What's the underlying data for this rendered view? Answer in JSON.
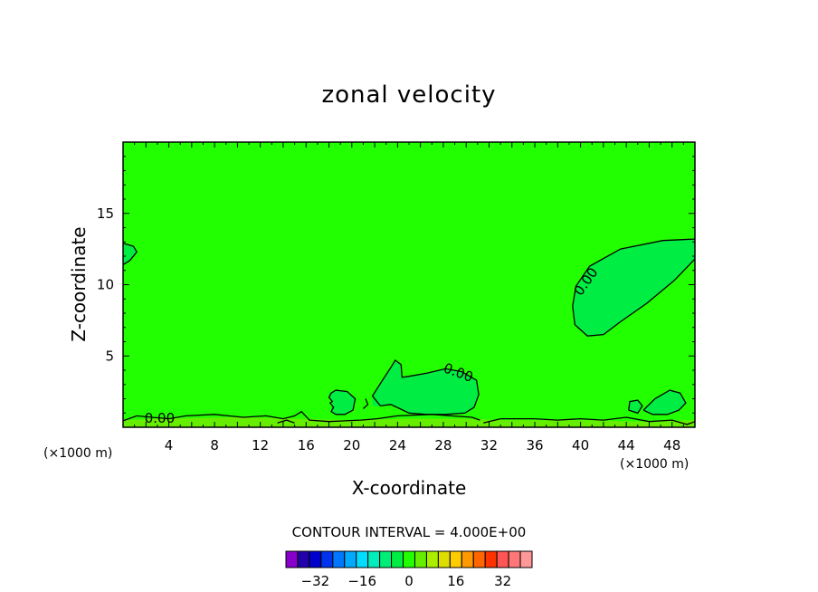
{
  "chart_data": {
    "type": "contour",
    "title": "zonal velocity",
    "xlabel": "X-coordinate",
    "ylabel": "Z-coordinate",
    "x_unit": "(×1000 m)",
    "y_unit": "(×1000 m)",
    "xlim": [
      0,
      50
    ],
    "ylim": [
      0,
      20
    ],
    "x_ticks": [
      4,
      8,
      12,
      16,
      20,
      24,
      28,
      32,
      36,
      40,
      44,
      48
    ],
    "y_ticks": [
      5,
      10,
      15
    ],
    "contour_interval_text": "CONTOUR INTERVAL = 4.000E+00",
    "contour_labels": [
      {
        "text": "0.00",
        "x": 3.2,
        "z": 0.6
      },
      {
        "text": "0.00",
        "x": 29.3,
        "z": 3.8
      },
      {
        "text": "0.00",
        "x": 40.5,
        "z": 10.2
      }
    ],
    "background_color": "#22ff00",
    "colorbar": {
      "colors": [
        "#8800cc",
        "#2200aa",
        "#0000cc",
        "#0033ee",
        "#0077ff",
        "#00aaff",
        "#00ddff",
        "#00eebb",
        "#00ee77",
        "#00ee44",
        "#22ff00",
        "#66ee00",
        "#aaee00",
        "#dddd00",
        "#ffcc00",
        "#ff9900",
        "#ff6600",
        "#ff3300",
        "#ff5555",
        "#ff7777",
        "#ff9999"
      ],
      "tick_labels": [
        "−32",
        "−16",
        "0",
        "16",
        "32"
      ],
      "tick_values": [
        -32,
        -16,
        0,
        16,
        32
      ],
      "vmin": -42,
      "vmax": 42
    },
    "regions": [
      {
        "name": "upper-right-jet",
        "fill": "#00ee44",
        "points": [
          [
            39.3,
            8.5
          ],
          [
            39.6,
            9.9
          ],
          [
            40.8,
            11.3
          ],
          [
            43.5,
            12.5
          ],
          [
            47.2,
            13.1
          ],
          [
            50,
            13.2
          ],
          [
            50,
            11.8
          ],
          [
            48.2,
            10.3
          ],
          [
            45.8,
            8.7
          ],
          [
            43.5,
            7.4
          ],
          [
            42.0,
            6.5
          ],
          [
            40.6,
            6.4
          ],
          [
            39.5,
            7.2
          ]
        ]
      },
      {
        "name": "left-edge-blob",
        "fill": "#00ee44",
        "points": [
          [
            0,
            12.9
          ],
          [
            0.9,
            12.7
          ],
          [
            1.2,
            12.3
          ],
          [
            0.6,
            11.7
          ],
          [
            0,
            11.4
          ]
        ]
      },
      {
        "name": "lower-mid-jet",
        "fill": "#00ee44",
        "points": [
          [
            21.8,
            1.5
          ],
          [
            21.8,
            2.2
          ],
          [
            22.6,
            3.2
          ],
          [
            23.5,
            4.3
          ],
          [
            23.8,
            4.7
          ],
          [
            24.3,
            4.4
          ],
          [
            24.4,
            3.5
          ],
          [
            25.2,
            3.6
          ],
          [
            26.6,
            3.8
          ],
          [
            28.2,
            4.1
          ],
          [
            29.6,
            3.9
          ],
          [
            30.9,
            3.3
          ],
          [
            31.1,
            2.3
          ],
          [
            30.7,
            1.4
          ],
          [
            29.9,
            1.0
          ],
          [
            28.2,
            0.9
          ],
          [
            26.5,
            0.9
          ],
          [
            25.0,
            1.0
          ],
          [
            24.2,
            1.3
          ],
          [
            23.4,
            1.6
          ],
          [
            22.5,
            1.5
          ]
        ]
      },
      {
        "name": "small-blob-19",
        "fill": "#00ee44",
        "points": [
          [
            18.2,
            1.1
          ],
          [
            18.3,
            1.8
          ],
          [
            18.0,
            2.4
          ],
          [
            18.6,
            2.6
          ],
          [
            19.6,
            2.5
          ],
          [
            20.3,
            2.0
          ],
          [
            20.1,
            1.2
          ],
          [
            19.4,
            0.9
          ],
          [
            18.6,
            0.9
          ]
        ]
      },
      {
        "name": "right-small-blob",
        "fill": "#00ee44",
        "points": [
          [
            45.5,
            1.2
          ],
          [
            46.5,
            2.0
          ],
          [
            47.8,
            2.6
          ],
          [
            48.7,
            2.4
          ],
          [
            49.2,
            1.7
          ],
          [
            48.6,
            1.2
          ],
          [
            47.6,
            0.9
          ],
          [
            46.3,
            0.9
          ]
        ]
      },
      {
        "name": "mid-small-blob",
        "fill": "#00ee44",
        "points": [
          [
            44.2,
            1.2
          ],
          [
            44.3,
            1.8
          ],
          [
            45.0,
            1.9
          ],
          [
            45.4,
            1.5
          ],
          [
            45.0,
            1.0
          ]
        ]
      },
      {
        "name": "bottom-band",
        "fill": "#66ee00",
        "points": [
          [
            0,
            0
          ],
          [
            0,
            0.5
          ],
          [
            3,
            0.6
          ],
          [
            10,
            0.7
          ],
          [
            15,
            0.6
          ],
          [
            20,
            0.5
          ],
          [
            25,
            0.6
          ],
          [
            30,
            0.6
          ],
          [
            33,
            0.5
          ],
          [
            40,
            0.5
          ],
          [
            46,
            0.4
          ],
          [
            50,
            0.5
          ],
          [
            50,
            0
          ]
        ]
      }
    ],
    "contour_lines": [
      [
        [
          0,
          0.45
        ],
        [
          1.2,
          0.8
        ],
        [
          2.5,
          0.7
        ],
        [
          4,
          0.6
        ],
        [
          5.5,
          0.8
        ],
        [
          8,
          0.9
        ],
        [
          10.5,
          0.7
        ],
        [
          12.5,
          0.8
        ],
        [
          14,
          0.6
        ],
        [
          15,
          0.8
        ],
        [
          15.6,
          1.1
        ],
        [
          16.3,
          0.5
        ],
        [
          18,
          0.4
        ],
        [
          20.8,
          0.5
        ],
        [
          22.2,
          0.6
        ],
        [
          24,
          0.8
        ],
        [
          27,
          0.9
        ],
        [
          30.5,
          0.7
        ],
        [
          31.2,
          0.5
        ]
      ],
      [
        [
          31.5,
          0.3
        ],
        [
          33,
          0.6
        ],
        [
          36,
          0.6
        ],
        [
          38,
          0.5
        ],
        [
          40,
          0.6
        ],
        [
          42,
          0.5
        ],
        [
          44,
          0.7
        ],
        [
          46,
          0.4
        ],
        [
          48,
          0.5
        ],
        [
          49.3,
          0.2
        ],
        [
          50,
          0.4
        ]
      ],
      [
        [
          0,
          12.9
        ],
        [
          0.9,
          12.7
        ],
        [
          1.2,
          12.3
        ],
        [
          0.6,
          11.7
        ],
        [
          0,
          11.4
        ]
      ],
      [
        [
          50,
          11.8
        ],
        [
          48.2,
          10.3
        ],
        [
          45.8,
          8.7
        ],
        [
          43.5,
          7.4
        ],
        [
          42.0,
          6.5
        ],
        [
          40.6,
          6.4
        ],
        [
          39.5,
          7.2
        ],
        [
          39.3,
          8.5
        ],
        [
          39.6,
          9.9
        ],
        [
          40.8,
          11.3
        ],
        [
          43.5,
          12.5
        ],
        [
          47.2,
          13.1
        ],
        [
          50,
          13.2
        ]
      ],
      [
        [
          22.5,
          1.5
        ],
        [
          21.8,
          2.2
        ],
        [
          22.6,
          3.2
        ],
        [
          23.5,
          4.3
        ],
        [
          23.8,
          4.7
        ],
        [
          24.3,
          4.4
        ],
        [
          24.4,
          3.5
        ],
        [
          25.2,
          3.6
        ],
        [
          26.6,
          3.8
        ],
        [
          28.2,
          4.1
        ],
        [
          29.6,
          3.9
        ],
        [
          30.9,
          3.3
        ],
        [
          31.1,
          2.3
        ],
        [
          30.7,
          1.4
        ],
        [
          29.9,
          1.0
        ],
        [
          28.2,
          0.9
        ],
        [
          26.5,
          0.9
        ],
        [
          25.0,
          1.0
        ],
        [
          24.2,
          1.3
        ],
        [
          23.4,
          1.6
        ],
        [
          22.5,
          1.5
        ]
      ],
      [
        [
          18.6,
          0.9
        ],
        [
          18.2,
          1.1
        ],
        [
          18.4,
          1.4
        ],
        [
          18.1,
          1.7
        ],
        [
          18.3,
          1.8
        ],
        [
          18.0,
          2.1
        ],
        [
          18.2,
          2.4
        ],
        [
          18.6,
          2.6
        ],
        [
          19.6,
          2.5
        ],
        [
          20.3,
          2.0
        ],
        [
          20.1,
          1.2
        ],
        [
          19.4,
          0.9
        ],
        [
          18.6,
          0.9
        ]
      ],
      [
        [
          45.5,
          1.2
        ],
        [
          46.5,
          2.0
        ],
        [
          47.8,
          2.6
        ],
        [
          48.7,
          2.4
        ],
        [
          49.2,
          1.7
        ],
        [
          48.6,
          1.2
        ],
        [
          47.6,
          0.9
        ],
        [
          46.3,
          0.9
        ],
        [
          45.5,
          1.2
        ]
      ],
      [
        [
          44.2,
          1.2
        ],
        [
          44.3,
          1.8
        ],
        [
          45.0,
          1.9
        ],
        [
          45.4,
          1.5
        ],
        [
          45.0,
          1.0
        ],
        [
          44.2,
          1.2
        ]
      ],
      [
        [
          21.0,
          1.3
        ],
        [
          21.4,
          1.6
        ],
        [
          21.2,
          2.0
        ]
      ],
      [
        [
          13.5,
          0.3
        ],
        [
          14.3,
          0.5
        ],
        [
          15.0,
          0.3
        ]
      ]
    ]
  }
}
